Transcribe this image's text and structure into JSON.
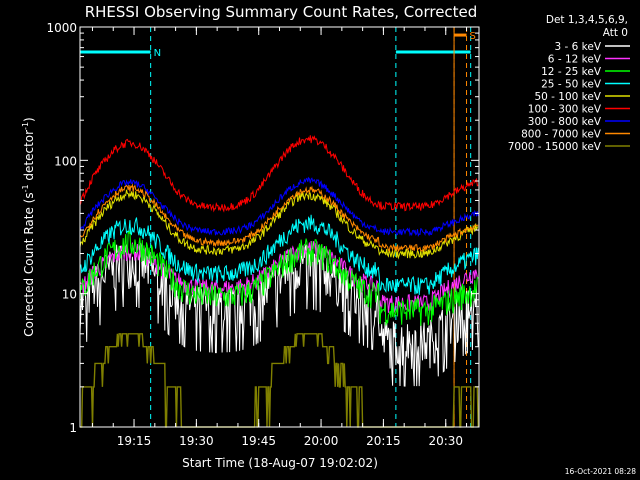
{
  "chart_data": {
    "type": "line",
    "title": "RHESSI Observing Summary Count Rates, Corrected",
    "xlabel": "Start Time (18-Aug-07 19:02:02)",
    "ylabel_main": "Corrected Count Rate (s",
    "ylabel_sup1": "-1",
    "ylabel_mid": " detector",
    "ylabel_sup2": "-1",
    "ylabel_end": ")",
    "yscale": "log",
    "ylim": [
      1,
      1000
    ],
    "xlim_min": [
      0,
      79
    ],
    "x_ticks": [
      {
        "min": 13,
        "label": "19:15"
      },
      {
        "min": 28,
        "label": "19:30"
      },
      {
        "min": 43,
        "label": "19:45"
      },
      {
        "min": 58,
        "label": "20:00"
      },
      {
        "min": 73,
        "label": "20:15"
      },
      {
        "min": 88,
        "label": "20:30"
      }
    ],
    "y_ticks": [
      {
        "v": 1,
        "label": "1"
      },
      {
        "v": 10,
        "label": "10"
      },
      {
        "v": 100,
        "label": "100"
      },
      {
        "v": 1000,
        "label": "1000"
      }
    ],
    "legend_header": [
      "Det 1,3,4,5,6,9,",
      "Att 0"
    ],
    "series": [
      {
        "name": "3 - 6 keV",
        "color": "#ffffff",
        "peak1": 18,
        "valley": 8,
        "peak2": 17,
        "low": 4.5,
        "end": 9,
        "noise": 0.2
      },
      {
        "name": "6 - 12 keV",
        "color": "#ff33ff",
        "peak1": 21,
        "valley": 11,
        "peak2": 22,
        "low": 8.5,
        "end": 15,
        "noise": 0.08
      },
      {
        "name": "12 - 25 keV",
        "color": "#00ff00",
        "peak1": 24,
        "valley": 9.5,
        "peak2": 21,
        "low": 7.5,
        "end": 11,
        "noise": 0.12
      },
      {
        "name": "25 - 50 keV",
        "color": "#00ffff",
        "peak1": 33,
        "valley": 14,
        "peak2": 34,
        "low": 11.5,
        "end": 20,
        "noise": 0.08
      },
      {
        "name": "50 - 100 keV",
        "color": "#e0e000",
        "peak1": 56,
        "valley": 21,
        "peak2": 55,
        "low": 20,
        "end": 32,
        "noise": 0.04
      },
      {
        "name": "100 - 300 keV",
        "color": "#ff0000",
        "peak1": 135,
        "valley": 44,
        "peak2": 145,
        "low": 45,
        "end": 70,
        "noise": 0.035
      },
      {
        "name": "300 - 800 keV",
        "color": "#0000ff",
        "peak1": 68,
        "valley": 29,
        "peak2": 70,
        "low": 29,
        "end": 40,
        "noise": 0.03
      },
      {
        "name": "800 - 7000 keV",
        "color": "#ff8800",
        "peak1": 62,
        "valley": 24,
        "peak2": 60,
        "low": 22,
        "end": 33,
        "noise": 0.03
      },
      {
        "name": "7000 - 15000 keV",
        "color": "#808000",
        "peak1": 5,
        "valley": 1,
        "peak2": 5,
        "low": 1,
        "end": 2,
        "noise": 0
      }
    ],
    "flags": [
      {
        "label": "N",
        "color": "#00ffff",
        "start_min": -5,
        "end_min": 17,
        "level": 650
      },
      {
        "label": "",
        "color": "#00ffff",
        "start_min": 76,
        "end_min": 94,
        "level": 650
      },
      {
        "label": "S",
        "color": "#ff8800",
        "start_min": 90,
        "end_min": 93,
        "level": 870
      }
    ]
  },
  "stamp": "16-Oct-2021 08:28"
}
